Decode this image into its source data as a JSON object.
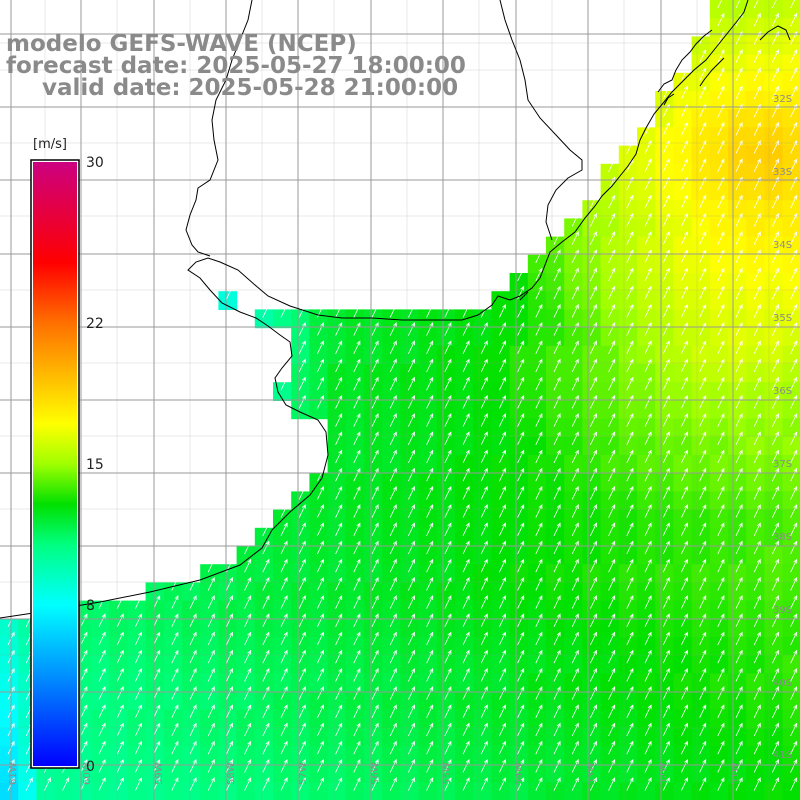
{
  "titles": {
    "line1": "modelo GEFS-WAVE (NCEP)",
    "line2": "forecast date: 2025-05-27 18:00:00",
    "line3": "valid date: 2025-05-28 21:00:00"
  },
  "colorbar": {
    "unit": "[m/s]",
    "min": 0,
    "max": 30,
    "ticks": [
      "30",
      "22",
      "15",
      "8",
      "0"
    ],
    "tick_values": [
      30,
      22,
      15,
      8,
      0
    ],
    "stops": [
      {
        "value": 0,
        "color": "#0000ff"
      },
      {
        "value": 4,
        "color": "#0080ff"
      },
      {
        "value": 8,
        "color": "#00ffff"
      },
      {
        "value": 11,
        "color": "#00ff80"
      },
      {
        "value": 13,
        "color": "#00e000"
      },
      {
        "value": 15,
        "color": "#a0ff00"
      },
      {
        "value": 17,
        "color": "#ffff00"
      },
      {
        "value": 22,
        "color": "#ff7000"
      },
      {
        "value": 25,
        "color": "#ff0000"
      },
      {
        "value": 30,
        "color": "#cc0080"
      }
    ]
  },
  "map": {
    "lat_labels": [
      "32S",
      "33S",
      "34S",
      "35S",
      "36S",
      "37S",
      "38S",
      "39S",
      "40S",
      "41S"
    ],
    "lon_labels": [
      "61W",
      "60W",
      "59W",
      "58W",
      "57W",
      "56W",
      "55W",
      "54W",
      "53W",
      "52W",
      "51W"
    ],
    "colors": {
      "land": "#ffffff",
      "coast": "#000000",
      "grid": "#9a9a9a",
      "arrow": "#ffffff"
    }
  }
}
